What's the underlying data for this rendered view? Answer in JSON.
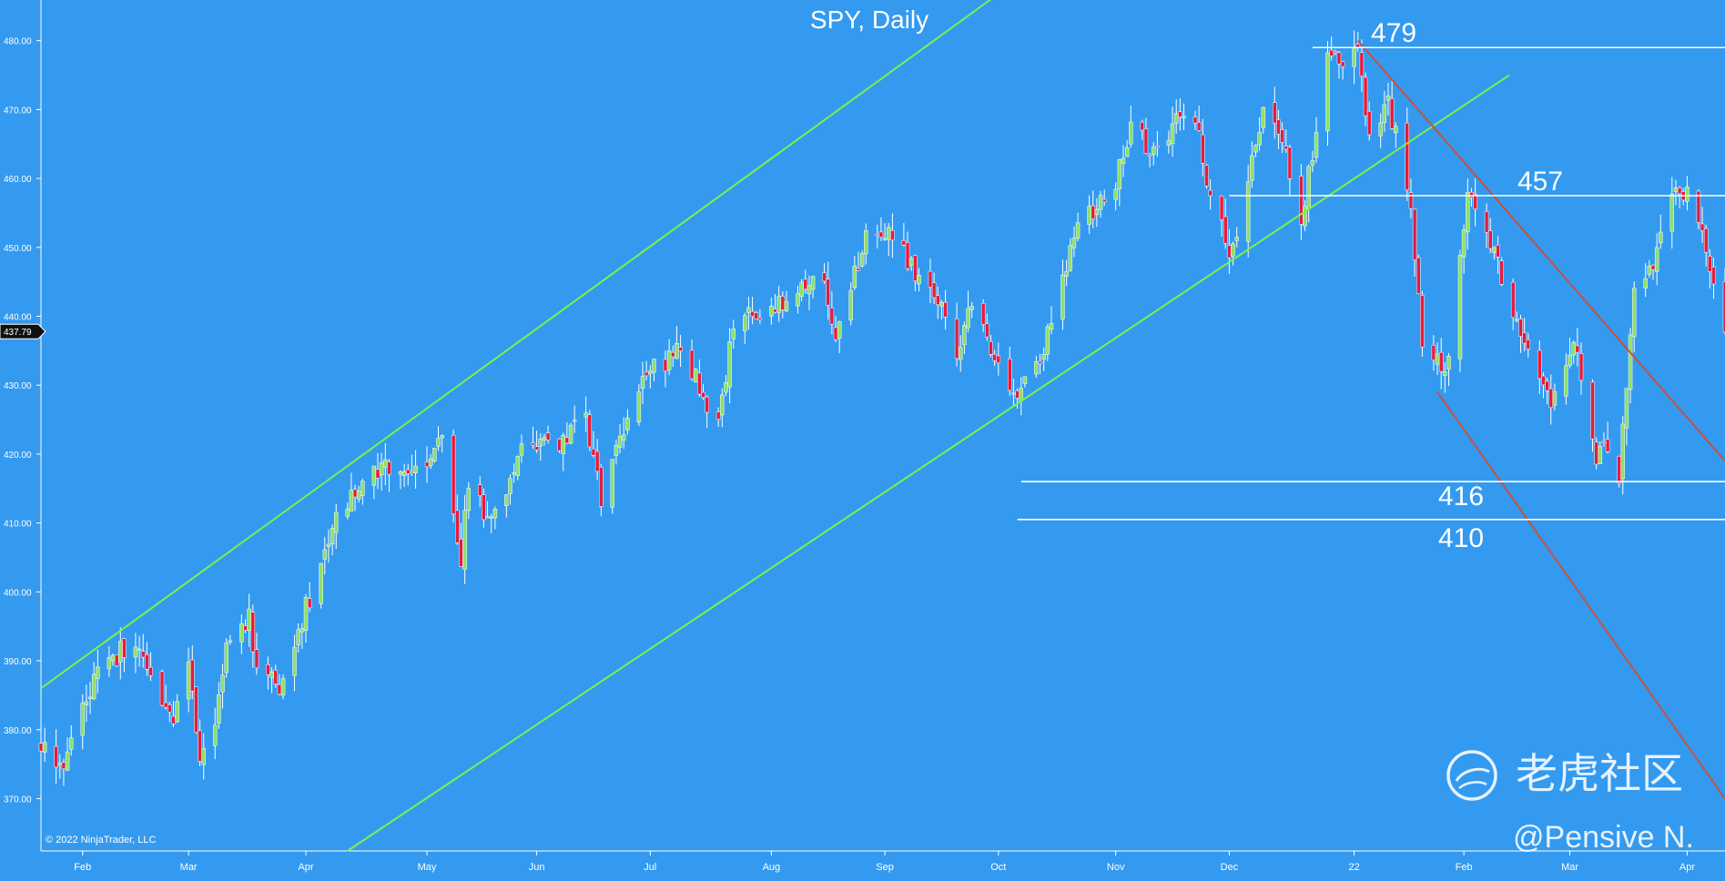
{
  "colors": {
    "background": "#339af0",
    "up": "#8fe06a",
    "down": "#e31c3d",
    "wick": "#ffffff",
    "channel": "#7df04a",
    "downtrend": "#c9513c",
    "level": "#ffffff",
    "axis_text": "#ffffff",
    "price_badge": "#111111"
  },
  "chart_data": {
    "type": "candlestick",
    "title": "SPY, Daily",
    "copyright": "© 2022 NinjaTrader, LLC",
    "current_price_label": "437.79",
    "current_price": 437.79,
    "y_ticks": [
      480,
      470,
      460,
      450,
      440,
      430,
      420,
      410,
      400,
      390,
      380,
      370
    ],
    "y_tick_labels": [
      "480.00",
      "470.00",
      "460.00",
      "450.00",
      "440.00",
      "430.00",
      "420.00",
      "410.00",
      "400.00",
      "390.00",
      "380.00",
      "370.00"
    ],
    "ylim": [
      362.4,
      485.9
    ],
    "date_start": "2021-01-21",
    "date_end": "2022-04-11",
    "x_ticks": [
      {
        "date": "2021-02-01",
        "label": "Feb"
      },
      {
        "date": "2021-03-01",
        "label": "Mar"
      },
      {
        "date": "2021-04-01",
        "label": "Apr"
      },
      {
        "date": "2021-05-03",
        "label": "May"
      },
      {
        "date": "2021-06-01",
        "label": "Jun"
      },
      {
        "date": "2021-07-01",
        "label": "Jul"
      },
      {
        "date": "2021-08-02",
        "label": "Aug"
      },
      {
        "date": "2021-09-01",
        "label": "Sep"
      },
      {
        "date": "2021-10-01",
        "label": "Oct"
      },
      {
        "date": "2021-11-01",
        "label": "Nov"
      },
      {
        "date": "2021-12-01",
        "label": "Dec"
      },
      {
        "date": "2022-01-03",
        "label": "22"
      },
      {
        "date": "2022-02-01",
        "label": "Feb"
      },
      {
        "date": "2022-03-01",
        "label": "Mar"
      },
      {
        "date": "2022-04-01",
        "label": "Apr"
      }
    ],
    "price_path": [
      [
        "2021-01-21",
        378
      ],
      [
        "2021-01-27",
        374
      ],
      [
        "2021-02-01",
        383
      ],
      [
        "2021-02-05",
        388
      ],
      [
        "2021-02-12",
        392
      ],
      [
        "2021-02-16",
        393
      ],
      [
        "2021-02-25",
        381
      ],
      [
        "2021-03-01",
        389
      ],
      [
        "2021-03-04",
        377
      ],
      [
        "2021-03-08",
        382
      ],
      [
        "2021-03-11",
        392
      ],
      [
        "2021-03-17",
        396
      ],
      [
        "2021-03-19",
        389
      ],
      [
        "2021-03-25",
        386
      ],
      [
        "2021-03-31",
        396
      ],
      [
        "2021-04-08",
        409
      ],
      [
        "2021-04-16",
        417
      ],
      [
        "2021-04-26",
        418
      ],
      [
        "2021-04-30",
        418
      ],
      [
        "2021-05-07",
        422
      ],
      [
        "2021-05-12",
        405
      ],
      [
        "2021-05-14",
        416
      ],
      [
        "2021-05-19",
        410
      ],
      [
        "2021-05-28",
        420
      ],
      [
        "2021-06-07",
        422
      ],
      [
        "2021-06-14",
        425
      ],
      [
        "2021-06-18",
        414
      ],
      [
        "2021-06-25",
        426
      ],
      [
        "2021-07-02",
        433
      ],
      [
        "2021-07-07",
        434
      ],
      [
        "2021-07-09",
        436
      ],
      [
        "2021-07-19",
        424
      ],
      [
        "2021-07-23",
        439
      ],
      [
        "2021-07-29",
        440
      ],
      [
        "2021-08-06",
        442
      ],
      [
        "2021-08-16",
        446
      ],
      [
        "2021-08-19",
        437
      ],
      [
        "2021-08-27",
        451
      ],
      [
        "2021-09-02",
        453
      ],
      [
        "2021-09-10",
        445
      ],
      [
        "2021-09-17",
        441
      ],
      [
        "2021-09-20",
        434
      ],
      [
        "2021-09-24",
        443
      ],
      [
        "2021-10-04",
        428
      ],
      [
        "2021-10-13",
        435
      ],
      [
        "2021-10-21",
        452
      ],
      [
        "2021-11-01",
        459
      ],
      [
        "2021-11-05",
        468
      ],
      [
        "2021-11-10",
        464
      ],
      [
        "2021-11-18",
        469
      ],
      [
        "2021-11-22",
        468
      ],
      [
        "2021-11-26",
        458
      ],
      [
        "2021-12-01",
        450
      ],
      [
        "2021-12-03",
        453
      ],
      [
        "2021-12-10",
        470
      ],
      [
        "2021-12-15",
        466
      ],
      [
        "2021-12-20",
        454
      ],
      [
        "2021-12-27",
        477
      ],
      [
        "2021-12-29",
        477
      ],
      [
        "2022-01-04",
        478
      ],
      [
        "2022-01-07",
        466
      ],
      [
        "2022-01-12",
        471
      ],
      [
        "2022-01-18",
        456
      ],
      [
        "2022-01-21",
        437
      ],
      [
        "2022-01-27",
        431
      ],
      [
        "2022-02-02",
        457
      ],
      [
        "2022-02-09",
        450
      ],
      [
        "2022-02-14",
        440
      ],
      [
        "2022-02-18",
        434
      ],
      [
        "2022-02-24",
        428
      ],
      [
        "2022-03-02",
        437
      ],
      [
        "2022-03-08",
        420
      ],
      [
        "2022-03-10",
        423
      ],
      [
        "2022-03-14",
        417
      ],
      [
        "2022-03-18",
        444
      ],
      [
        "2022-03-23",
        447
      ],
      [
        "2022-03-29",
        460
      ],
      [
        "2022-04-04",
        455
      ],
      [
        "2022-04-11",
        438
      ]
    ],
    "annotations": [
      {
        "label": "479",
        "value": 479,
        "from": "2021-12-23",
        "to": "2022-04-11"
      },
      {
        "label": "457",
        "value": 457.5,
        "from": "2021-12-01",
        "to": "2022-04-11"
      },
      {
        "label": "416",
        "value": 416,
        "from": "2021-10-07",
        "to": "2022-04-11"
      },
      {
        "label": "410",
        "value": 410.5,
        "from": "2021-10-06",
        "to": "2022-04-11"
      }
    ],
    "trendlines": [
      {
        "id": "channel-upper",
        "kind": "channel",
        "from": [
          "2021-01-21",
          386
        ],
        "to": [
          "2021-09-29",
          486
        ]
      },
      {
        "id": "channel-lower",
        "kind": "channel",
        "from": [
          "2021-04-12",
          362.4
        ],
        "to": [
          "2022-02-13",
          475
        ]
      },
      {
        "id": "downtrend-upper",
        "kind": "downtrend",
        "from": [
          "2022-01-04",
          480
        ],
        "to": [
          "2022-04-11",
          419
        ]
      },
      {
        "id": "downtrend-lower",
        "kind": "downtrend",
        "from": [
          "2022-01-25",
          429
        ],
        "to": [
          "2022-04-11",
          370
        ]
      }
    ]
  },
  "watermark": {
    "brand": "老虎社区",
    "handle": "@Pensive N."
  }
}
